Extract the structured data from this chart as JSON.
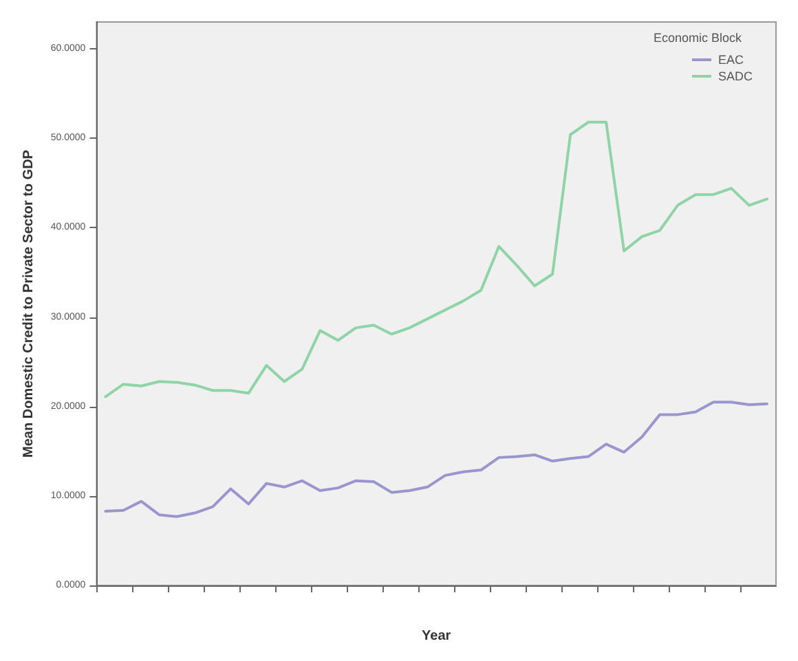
{
  "chart_data": {
    "type": "line",
    "xlabel": "Year",
    "ylabel": "Mean Domestic Credit to Private Sector to GDP",
    "legend_title": "Economic Block",
    "legend": "top right",
    "grid": false,
    "marker": "none",
    "line_style": "solid",
    "categories": [
      null,
      null,
      null,
      null,
      null,
      null,
      null,
      null,
      null,
      null,
      null,
      null,
      null,
      null,
      null,
      null,
      null,
      null,
      null,
      null,
      null,
      null,
      null,
      null,
      null,
      null,
      null,
      null,
      null,
      null,
      null,
      null,
      null,
      null,
      null,
      null,
      null,
      null
    ],
    "ylim": [
      0,
      63
    ],
    "yticks": [
      {
        "value": 0,
        "label": "0.0000"
      },
      {
        "value": 10,
        "label": "10.0000"
      },
      {
        "value": 20,
        "label": "20.0000"
      },
      {
        "value": 30,
        "label": "30.0000"
      },
      {
        "value": 40,
        "label": "40.0000"
      },
      {
        "value": 50,
        "label": "50.0000"
      },
      {
        "value": 60,
        "label": "60.0000"
      }
    ],
    "series": [
      {
        "name": "EAC",
        "color": "#9a95cc",
        "values": [
          8.3,
          8.4,
          9.4,
          7.9,
          7.7,
          8.1,
          8.8,
          10.8,
          9.1,
          11.4,
          11.0,
          11.7,
          10.6,
          10.9,
          11.7,
          11.6,
          10.4,
          10.6,
          11.0,
          12.3,
          12.7,
          12.9,
          14.3,
          14.4,
          14.6,
          13.9,
          14.2,
          14.4,
          15.8,
          14.9,
          16.6,
          19.1,
          19.1,
          19.4,
          20.5,
          20.5,
          20.2,
          20.3
        ]
      },
      {
        "name": "SADC",
        "color": "#8fd4a6",
        "values": [
          21.1,
          22.5,
          22.3,
          22.8,
          22.7,
          22.4,
          21.8,
          21.8,
          21.5,
          24.6,
          22.8,
          24.2,
          28.5,
          27.4,
          28.8,
          29.1,
          28.1,
          28.8,
          29.8,
          30.8,
          31.8,
          33.0,
          37.9,
          35.8,
          33.5,
          34.8,
          50.4,
          51.8,
          51.8,
          37.4,
          39.0,
          39.7,
          42.5,
          43.7,
          43.7,
          44.4,
          42.5,
          43.2
        ]
      }
    ]
  }
}
